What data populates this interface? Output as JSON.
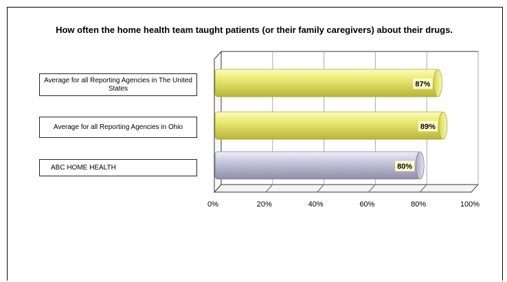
{
  "chart_data": {
    "type": "bar",
    "orientation": "horizontal",
    "title": "How often the home health team taught patients (or their family caregivers) about their drugs.",
    "categories": [
      "Average for all Reporting Agencies in The United States",
      "Average for all Reporting Agencies in Ohio",
      "ABC HOME HEALTH"
    ],
    "values": [
      87,
      89,
      80
    ],
    "value_labels": [
      "87%",
      "89%",
      "80%"
    ],
    "category_colors": [
      "#ffff66",
      "#ffff66",
      "#c0c0f0"
    ],
    "bar_colors": [
      "#e6e25a",
      "#e6e25a",
      "#b4b4cc"
    ],
    "xlim": [
      0,
      100
    ],
    "x_ticks": [
      "0%",
      "20%",
      "40%",
      "60%",
      "80%",
      "100%"
    ],
    "grid": true,
    "legend": "none"
  }
}
